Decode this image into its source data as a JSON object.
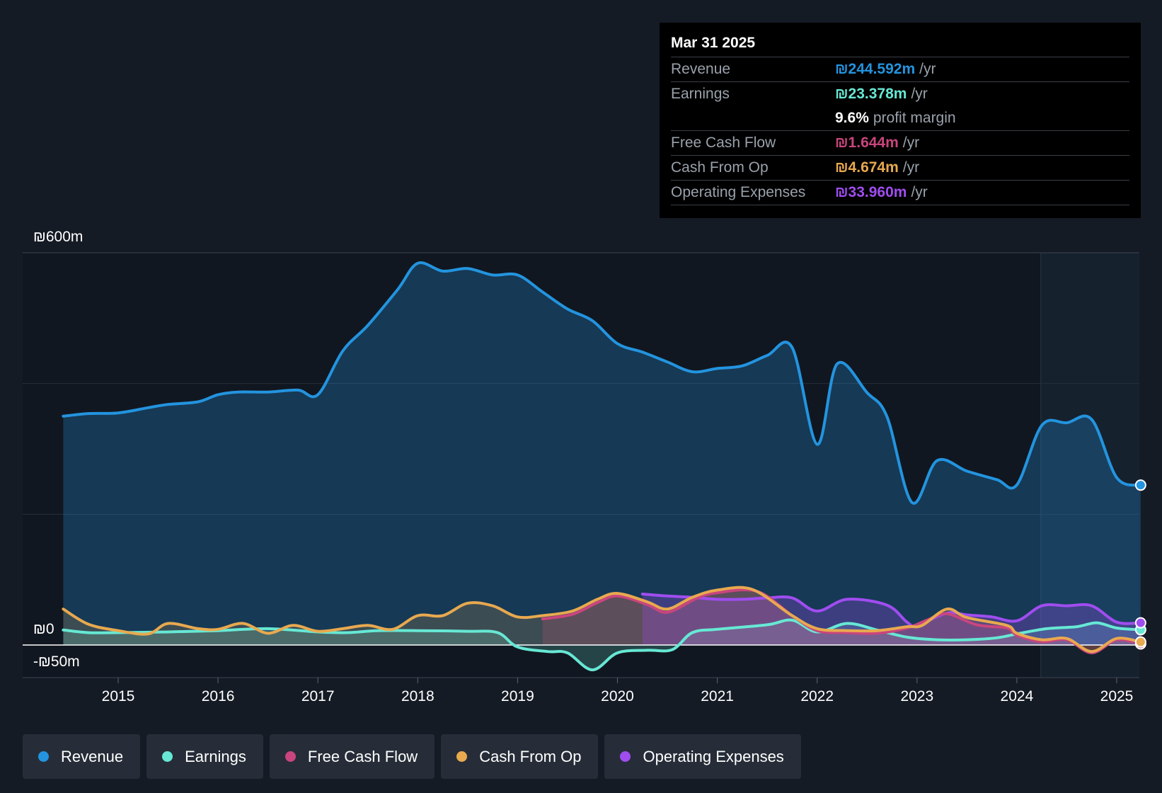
{
  "chart_data": {
    "type": "area",
    "currency_symbol": "₪",
    "x_ticks": [
      "2015",
      "2016",
      "2017",
      "2018",
      "2019",
      "2020",
      "2021",
      "2022",
      "2023",
      "2024",
      "2025"
    ],
    "y_labels": {
      "top": "₪600m",
      "zero": "₪0",
      "bottom": "-₪50m"
    },
    "ylim": [
      -50,
      600
    ],
    "xlim": [
      2014.0,
      2025.24
    ],
    "forecast_start": 2024.24,
    "series": [
      {
        "name": "Revenue",
        "color": "#2394df",
        "fill": true,
        "points": [
          [
            2014.45,
            350
          ],
          [
            2014.7,
            354
          ],
          [
            2015.0,
            355
          ],
          [
            2015.3,
            363
          ],
          [
            2015.5,
            368
          ],
          [
            2015.8,
            372
          ],
          [
            2016.0,
            383
          ],
          [
            2016.2,
            387
          ],
          [
            2016.5,
            387
          ],
          [
            2016.8,
            390
          ],
          [
            2017.0,
            383
          ],
          [
            2017.25,
            450
          ],
          [
            2017.5,
            489
          ],
          [
            2017.8,
            544
          ],
          [
            2018.0,
            584
          ],
          [
            2018.25,
            572
          ],
          [
            2018.5,
            576
          ],
          [
            2018.75,
            566
          ],
          [
            2019.0,
            566
          ],
          [
            2019.25,
            540
          ],
          [
            2019.5,
            514
          ],
          [
            2019.75,
            496
          ],
          [
            2020.0,
            461
          ],
          [
            2020.25,
            448
          ],
          [
            2020.5,
            433
          ],
          [
            2020.75,
            418
          ],
          [
            2021.0,
            423
          ],
          [
            2021.25,
            427
          ],
          [
            2021.5,
            443
          ],
          [
            2021.75,
            455
          ],
          [
            2022.0,
            307
          ],
          [
            2022.2,
            430
          ],
          [
            2022.5,
            386
          ],
          [
            2022.7,
            349
          ],
          [
            2022.95,
            218
          ],
          [
            2023.2,
            282
          ],
          [
            2023.5,
            266
          ],
          [
            2023.8,
            253
          ],
          [
            2024.0,
            245
          ],
          [
            2024.25,
            336
          ],
          [
            2024.5,
            340
          ],
          [
            2024.75,
            345
          ],
          [
            2025.0,
            256
          ],
          [
            2025.24,
            244.592
          ]
        ]
      },
      {
        "name": "Earnings",
        "color": "#67e8d4",
        "fill": true,
        "points": [
          [
            2014.45,
            23
          ],
          [
            2014.7,
            19
          ],
          [
            2015.0,
            19
          ],
          [
            2015.5,
            20
          ],
          [
            2016.0,
            22
          ],
          [
            2016.5,
            25
          ],
          [
            2017.0,
            20
          ],
          [
            2017.3,
            19
          ],
          [
            2017.6,
            22
          ],
          [
            2018.0,
            22
          ],
          [
            2018.5,
            21
          ],
          [
            2018.8,
            19
          ],
          [
            2019.0,
            -3
          ],
          [
            2019.3,
            -10
          ],
          [
            2019.5,
            -12
          ],
          [
            2019.75,
            -38
          ],
          [
            2020.0,
            -12
          ],
          [
            2020.3,
            -8
          ],
          [
            2020.55,
            -7
          ],
          [
            2020.75,
            19
          ],
          [
            2021.0,
            24
          ],
          [
            2021.5,
            31
          ],
          [
            2021.75,
            38
          ],
          [
            2022.0,
            20
          ],
          [
            2022.3,
            33
          ],
          [
            2022.6,
            23
          ],
          [
            2022.9,
            12
          ],
          [
            2023.2,
            8
          ],
          [
            2023.5,
            8
          ],
          [
            2023.8,
            11
          ],
          [
            2024.0,
            17
          ],
          [
            2024.3,
            25
          ],
          [
            2024.6,
            28
          ],
          [
            2024.8,
            34
          ],
          [
            2025.0,
            26
          ],
          [
            2025.24,
            23.378
          ]
        ]
      },
      {
        "name": "Free Cash Flow",
        "color": "#c9457d",
        "fill": true,
        "points": [
          [
            2019.25,
            40
          ],
          [
            2019.55,
            47
          ],
          [
            2019.8,
            65
          ],
          [
            2020.0,
            75
          ],
          [
            2020.3,
            62
          ],
          [
            2020.5,
            50
          ],
          [
            2020.8,
            72
          ],
          [
            2021.0,
            80
          ],
          [
            2021.4,
            82
          ],
          [
            2021.75,
            45
          ],
          [
            2022.0,
            22
          ],
          [
            2022.3,
            19
          ],
          [
            2022.6,
            18
          ],
          [
            2022.9,
            26
          ],
          [
            2023.1,
            38
          ],
          [
            2023.3,
            48
          ],
          [
            2023.6,
            31
          ],
          [
            2023.9,
            26
          ],
          [
            2024.0,
            15
          ],
          [
            2024.25,
            5
          ],
          [
            2024.5,
            8
          ],
          [
            2024.75,
            -12
          ],
          [
            2025.0,
            8
          ],
          [
            2025.24,
            1.644
          ]
        ]
      },
      {
        "name": "Cash From Op",
        "color": "#e8a94f",
        "fill": true,
        "points": [
          [
            2014.45,
            55
          ],
          [
            2014.7,
            32
          ],
          [
            2015.0,
            22
          ],
          [
            2015.3,
            17
          ],
          [
            2015.5,
            33
          ],
          [
            2015.8,
            25
          ],
          [
            2016.0,
            24
          ],
          [
            2016.25,
            33
          ],
          [
            2016.5,
            18
          ],
          [
            2016.75,
            30
          ],
          [
            2017.0,
            21
          ],
          [
            2017.25,
            25
          ],
          [
            2017.5,
            30
          ],
          [
            2017.75,
            24
          ],
          [
            2018.0,
            45
          ],
          [
            2018.25,
            45
          ],
          [
            2018.5,
            64
          ],
          [
            2018.75,
            60
          ],
          [
            2019.0,
            43
          ],
          [
            2019.25,
            45
          ],
          [
            2019.55,
            52
          ],
          [
            2019.8,
            70
          ],
          [
            2020.0,
            79
          ],
          [
            2020.3,
            66
          ],
          [
            2020.5,
            55
          ],
          [
            2020.75,
            73
          ],
          [
            2021.0,
            84
          ],
          [
            2021.35,
            85
          ],
          [
            2021.75,
            45
          ],
          [
            2022.0,
            25
          ],
          [
            2022.3,
            22
          ],
          [
            2022.6,
            22
          ],
          [
            2022.9,
            28
          ],
          [
            2023.05,
            30
          ],
          [
            2023.3,
            55
          ],
          [
            2023.5,
            42
          ],
          [
            2023.9,
            30
          ],
          [
            2024.0,
            18
          ],
          [
            2024.25,
            8
          ],
          [
            2024.5,
            10
          ],
          [
            2024.75,
            -10
          ],
          [
            2025.0,
            10
          ],
          [
            2025.24,
            4.674
          ]
        ]
      },
      {
        "name": "Operating Expenses",
        "color": "#a04df0",
        "fill": true,
        "points": [
          [
            2020.25,
            78
          ],
          [
            2020.5,
            75
          ],
          [
            2020.75,
            73
          ],
          [
            2021.0,
            70
          ],
          [
            2021.25,
            70
          ],
          [
            2021.5,
            72
          ],
          [
            2021.75,
            72
          ],
          [
            2022.0,
            52
          ],
          [
            2022.3,
            70
          ],
          [
            2022.7,
            61
          ],
          [
            2022.9,
            35
          ],
          [
            2023.0,
            30
          ],
          [
            2023.3,
            49
          ],
          [
            2023.5,
            46
          ],
          [
            2023.75,
            43
          ],
          [
            2024.0,
            37
          ],
          [
            2024.25,
            60
          ],
          [
            2024.5,
            60
          ],
          [
            2024.75,
            60
          ],
          [
            2025.0,
            35
          ],
          [
            2025.24,
            33.96
          ]
        ]
      }
    ],
    "tooltip": {
      "date": "Mar 31 2025",
      "rows": [
        {
          "label": "Revenue",
          "value": "₪244.592m",
          "unit": "/yr",
          "color": "#2394df"
        },
        {
          "label": "Earnings",
          "value": "₪23.378m",
          "unit": "/yr",
          "color": "#67e8d4"
        },
        {
          "label": "",
          "value": "9.6%",
          "unit": "profit margin",
          "color": "#ffffff"
        },
        {
          "label": "Free Cash Flow",
          "value": "₪1.644m",
          "unit": "/yr",
          "color": "#c9457d"
        },
        {
          "label": "Cash From Op",
          "value": "₪4.674m",
          "unit": "/yr",
          "color": "#e8a94f"
        },
        {
          "label": "Operating Expenses",
          "value": "₪33.960m",
          "unit": "/yr",
          "color": "#a04df0"
        }
      ]
    }
  },
  "legend": [
    {
      "label": "Revenue",
      "color": "#2394df"
    },
    {
      "label": "Earnings",
      "color": "#67e8d4"
    },
    {
      "label": "Free Cash Flow",
      "color": "#c9457d"
    },
    {
      "label": "Cash From Op",
      "color": "#e8a94f"
    },
    {
      "label": "Operating Expenses",
      "color": "#a04df0"
    }
  ]
}
